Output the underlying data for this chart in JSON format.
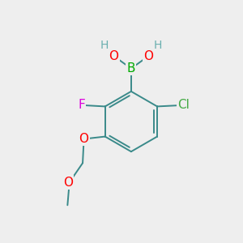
{
  "background_color": "#eeeeee",
  "atom_colors": {
    "C": "#3a8a8a",
    "H": "#6aafaf",
    "B": "#00aa00",
    "O": "#ff0000",
    "F": "#dd00dd",
    "Cl": "#44aa44"
  },
  "bond_color": "#3a8a8a",
  "bond_width": 1.4,
  "figsize": [
    3.0,
    3.0
  ],
  "dpi": 100
}
